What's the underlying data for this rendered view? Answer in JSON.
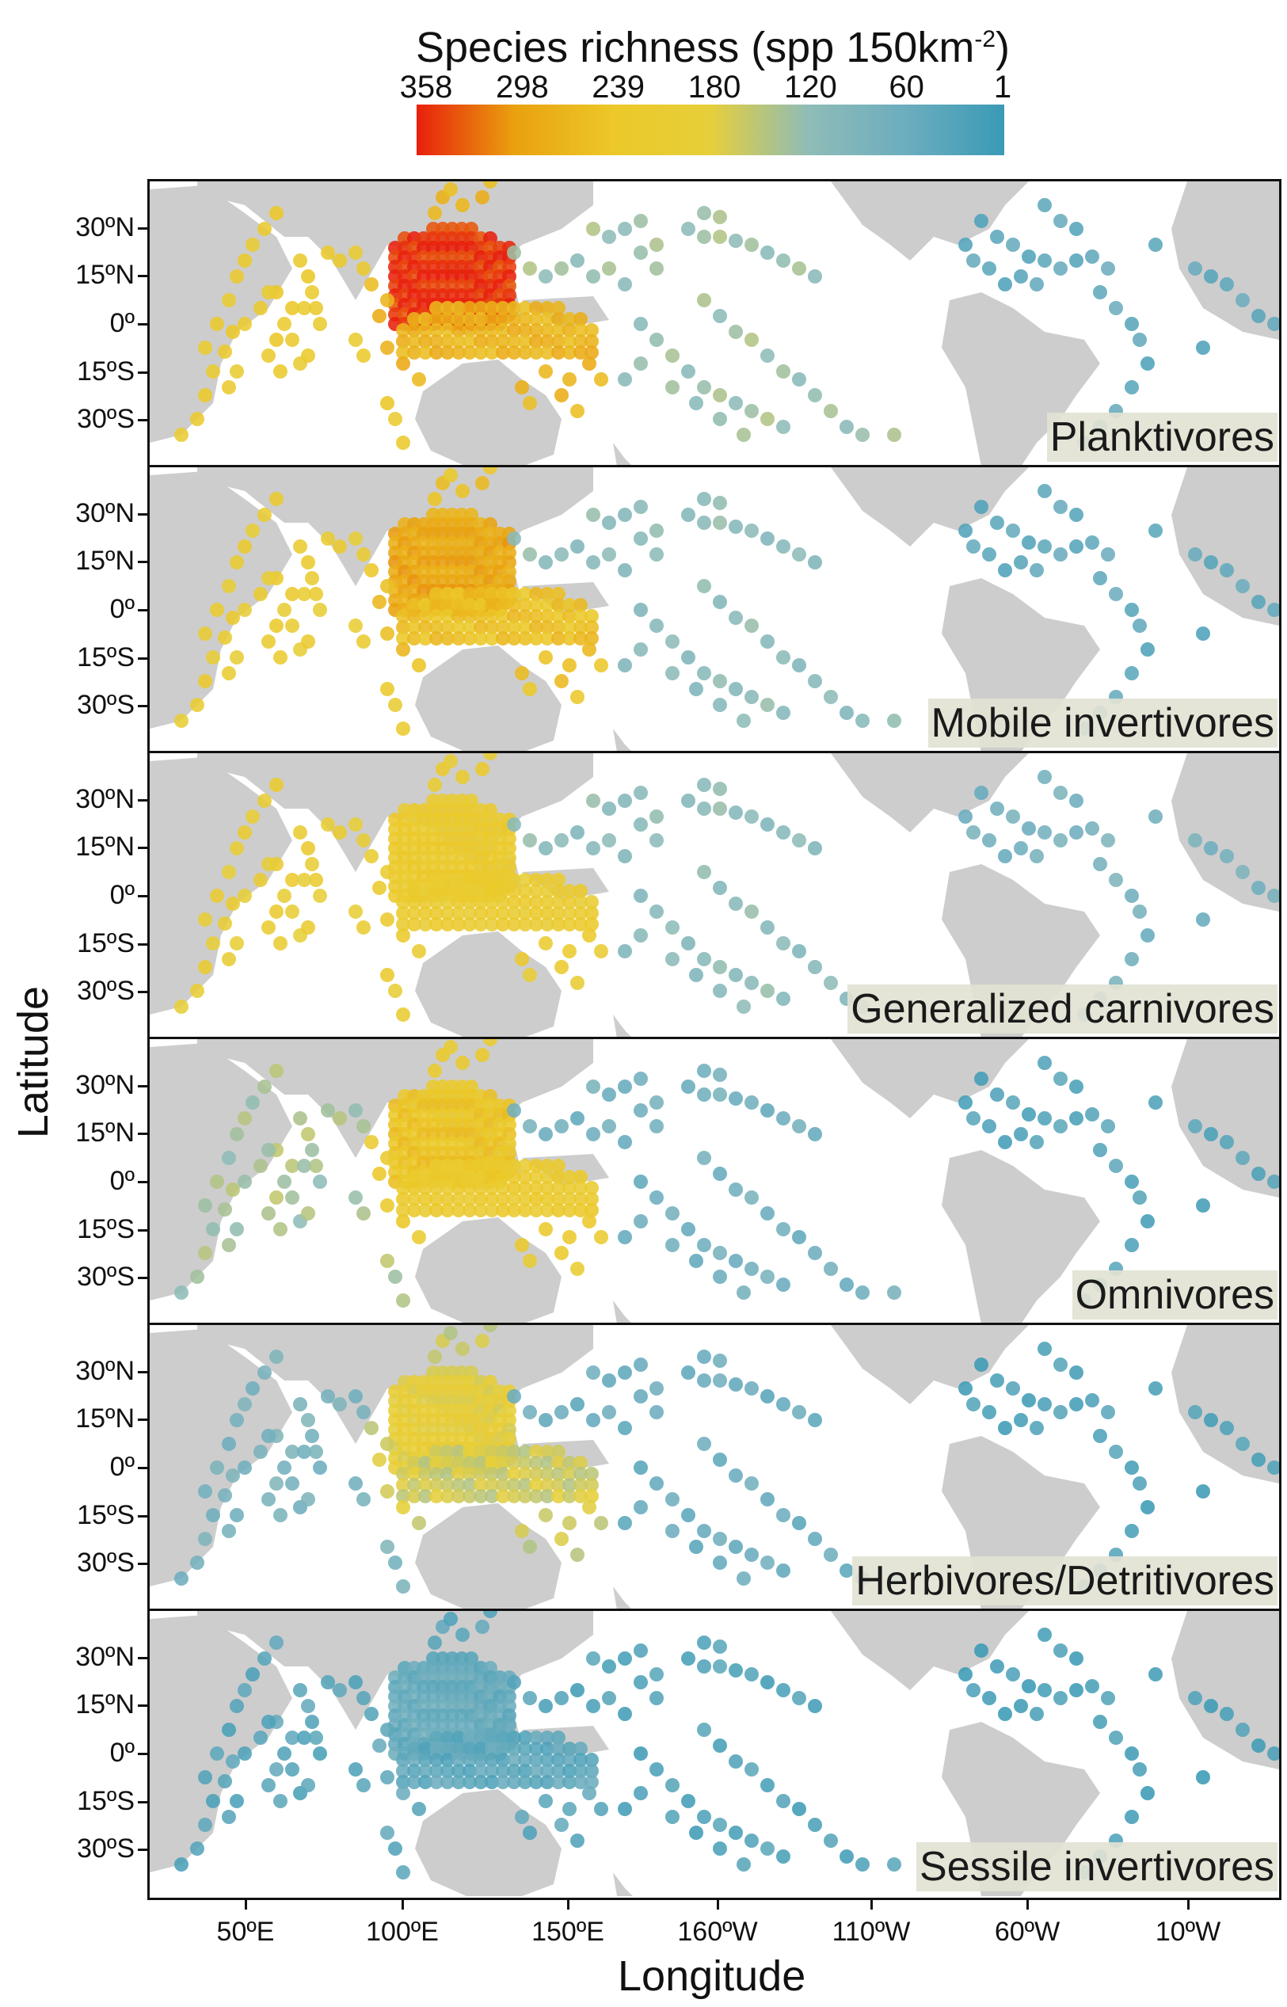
{
  "legend": {
    "title": "Species richness (spp 150km",
    "title_sup": "-2",
    "title_close": ")",
    "ticks": [
      "358",
      "298",
      "239",
      "180",
      "120",
      "60",
      "1"
    ],
    "colors": [
      "#e8200c",
      "#e9a10f",
      "#ecc828",
      "#e6cf3a",
      "#8fbcb7",
      "#6cadbe",
      "#3a9ab5"
    ]
  },
  "y_axis": {
    "title": "Latitude",
    "ticks": [
      "30ºN",
      "15ºN",
      "0º",
      "15ºS",
      "30ºS"
    ]
  },
  "x_axis": {
    "title": "Longitude",
    "ticks": [
      "50ºE",
      "100ºE",
      "150ºE",
      "160ºW",
      "110ºW",
      "60ºW",
      "10ºW"
    ]
  },
  "panels": [
    {
      "label": "Planktivores",
      "levels": {
        "core": 0.98,
        "coral": 0.75,
        "indian": 0.62,
        "pacific": 0.35,
        "atlantic": 0.12
      }
    },
    {
      "label": "Mobile invertivores",
      "levels": {
        "core": 0.8,
        "coral": 0.7,
        "indian": 0.58,
        "pacific": 0.3,
        "atlantic": 0.12
      }
    },
    {
      "label": "Generalized carnivores",
      "levels": {
        "core": 0.62,
        "coral": 0.6,
        "indian": 0.56,
        "pacific": 0.3,
        "atlantic": 0.2
      }
    },
    {
      "label": "Omnivores",
      "levels": {
        "core": 0.68,
        "coral": 0.62,
        "indian": 0.38,
        "pacific": 0.18,
        "atlantic": 0.08
      }
    },
    {
      "label": "Herbivores/Detritivores",
      "levels": {
        "core": 0.52,
        "coral": 0.45,
        "indian": 0.22,
        "pacific": 0.15,
        "atlantic": 0.06
      }
    },
    {
      "label": "Sessile invertivores",
      "levels": {
        "core": 0.15,
        "coral": 0.12,
        "indian": 0.1,
        "pacific": 0.07,
        "atlantic": 0.04
      }
    }
  ]
}
